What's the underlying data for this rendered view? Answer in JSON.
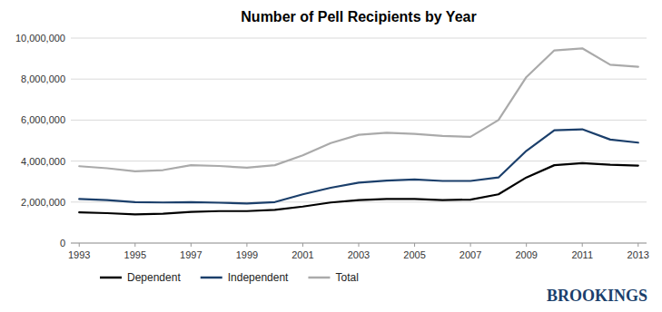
{
  "chart_data": {
    "type": "line",
    "title": "Number of Pell Recipients by Year",
    "x": [
      1993,
      1994,
      1995,
      1996,
      1997,
      1998,
      1999,
      2000,
      2001,
      2002,
      2003,
      2004,
      2005,
      2006,
      2007,
      2008,
      2009,
      2010,
      2011,
      2012,
      2013
    ],
    "series": [
      {
        "name": "Total",
        "color": "#aaaaaa",
        "values": [
          3750000,
          3650000,
          3500000,
          3560000,
          3800000,
          3760000,
          3680000,
          3800000,
          4280000,
          4880000,
          5280000,
          5380000,
          5330000,
          5230000,
          5180000,
          6000000,
          8100000,
          9400000,
          9500000,
          8700000,
          8600000
        ]
      },
      {
        "name": "Independent",
        "color": "#1b3f6b",
        "values": [
          2150000,
          2100000,
          2000000,
          1980000,
          2000000,
          1970000,
          1930000,
          2000000,
          2380000,
          2700000,
          2950000,
          3050000,
          3100000,
          3030000,
          3030000,
          3200000,
          4500000,
          5500000,
          5550000,
          5050000,
          4900000
        ]
      },
      {
        "name": "Dependent",
        "color": "#000000",
        "values": [
          1500000,
          1460000,
          1400000,
          1430000,
          1520000,
          1560000,
          1560000,
          1620000,
          1780000,
          1980000,
          2100000,
          2150000,
          2150000,
          2100000,
          2120000,
          2380000,
          3200000,
          3800000,
          3900000,
          3820000,
          3780000
        ]
      }
    ],
    "xlim": [
      1992.7,
      2013.3
    ],
    "xticks": [
      1993,
      1995,
      1997,
      1999,
      2001,
      2003,
      2005,
      2007,
      2009,
      2011,
      2013
    ],
    "ylim": [
      0,
      10000000
    ],
    "yticks": [
      0,
      {
        "value": 2000000,
        "label": "2,000,000"
      },
      {
        "value": 4000000,
        "label": "4,000,000"
      },
      {
        "value": 6000000,
        "label": "6,000,000"
      },
      {
        "value": 8000000,
        "label": "8,000,000"
      },
      {
        "value": 10000000,
        "label": "10,000,000"
      }
    ],
    "grid": true,
    "legend": "bottom",
    "annotations": [
      {
        "text": "BROOKINGS",
        "color": "#1b3f6b"
      }
    ]
  }
}
